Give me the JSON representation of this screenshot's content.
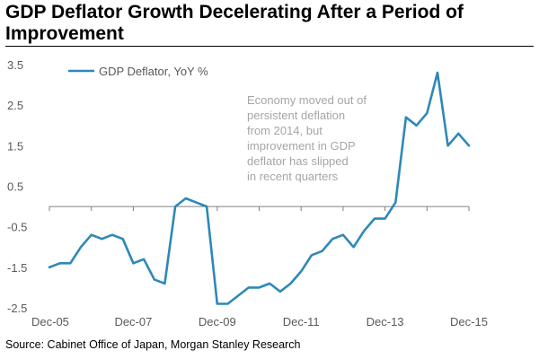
{
  "header": {
    "title": "GDP Deflator Growth Decelerating After a Period of Improvement"
  },
  "source": "Source: Cabinet Office of Japan, Morgan Stanley Research",
  "colors": {
    "series": "#2e88b8",
    "text": "#595959",
    "annotation": "#a6a6a6"
  },
  "chart_data": {
    "type": "line",
    "title": "GDP Deflator Growth Decelerating After a Period of Improvement",
    "xlabel": "",
    "ylabel": "",
    "ylim": [
      -2.5,
      3.5
    ],
    "yticks": [
      -2.5,
      -1.5,
      -0.5,
      0.5,
      1.5,
      2.5,
      3.5
    ],
    "x_tick_labels": [
      "Dec-05",
      "Dec-07",
      "Dec-09",
      "Dec-11",
      "Dec-13",
      "Dec-15"
    ],
    "x_range": [
      "2005-12",
      "2015-12"
    ],
    "grid": false,
    "legend": "top-left",
    "annotation": "Economy moved out of persistent deflation from 2014, but improvement in GDP deflator has slipped in recent quarters",
    "series": [
      {
        "name": "GDP Deflator, YoY %",
        "x": [
          "2005-12",
          "2006-03",
          "2006-06",
          "2006-09",
          "2006-12",
          "2007-03",
          "2007-06",
          "2007-09",
          "2007-12",
          "2008-03",
          "2008-06",
          "2008-09",
          "2008-12",
          "2009-03",
          "2009-06",
          "2009-09",
          "2009-12",
          "2010-03",
          "2010-06",
          "2010-09",
          "2010-12",
          "2011-03",
          "2011-06",
          "2011-09",
          "2011-12",
          "2012-03",
          "2012-06",
          "2012-09",
          "2012-12",
          "2013-03",
          "2013-06",
          "2013-09",
          "2013-12",
          "2014-03",
          "2014-06",
          "2014-09",
          "2014-12",
          "2015-03",
          "2015-06",
          "2015-09",
          "2015-12"
        ],
        "values": [
          -1.5,
          -1.4,
          -1.4,
          -1.0,
          -0.7,
          -0.8,
          -0.7,
          -0.8,
          -1.4,
          -1.3,
          -1.8,
          -1.9,
          0.0,
          0.2,
          0.1,
          0.0,
          -2.4,
          -2.4,
          -2.2,
          -2.0,
          -2.0,
          -1.9,
          -2.1,
          -1.9,
          -1.6,
          -1.2,
          -1.1,
          -0.8,
          -0.7,
          -1.0,
          -0.6,
          -0.3,
          -0.3,
          0.1,
          2.2,
          2.0,
          2.3,
          3.3,
          1.5,
          1.8,
          1.5
        ]
      }
    ]
  }
}
